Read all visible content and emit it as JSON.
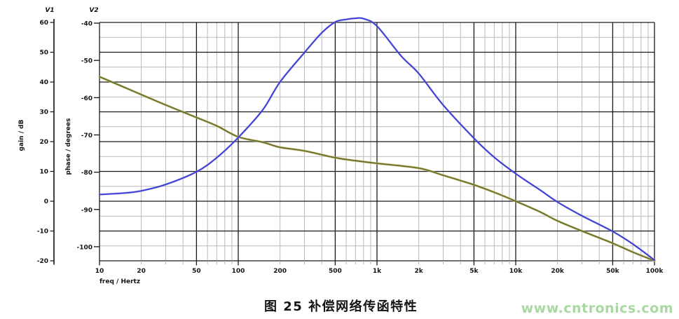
{
  "caption": "图 25 补偿网络传函特性",
  "watermark": "www.cntronics.com",
  "chart": {
    "v1_label": "V1",
    "v2_label": "V2",
    "y1_axis": {
      "title": "gain / dB",
      "unit": "dB",
      "max": 60,
      "min": -20,
      "ticks": [
        60,
        50,
        40,
        30,
        20,
        10,
        0,
        -10,
        -20
      ],
      "minor_step_dB": 5
    },
    "y2_axis": {
      "title": "phase / degrees",
      "unit": "degrees",
      "max": -40,
      "min": -104,
      "ticks": [
        -40,
        -50,
        -60,
        -70,
        -80,
        -90,
        -100
      ]
    },
    "x_axis": {
      "title": "freq / Hertz",
      "scale": "log",
      "min": 10,
      "max": 100000,
      "labeled_ticks": [
        {
          "f": 10,
          "label": "10"
        },
        {
          "f": 20,
          "label": "20"
        },
        {
          "f": 50,
          "label": "50"
        },
        {
          "f": 100,
          "label": "100"
        },
        {
          "f": 200,
          "label": "200"
        },
        {
          "f": 500,
          "label": "500"
        },
        {
          "f": 1000,
          "label": "1k"
        },
        {
          "f": 2000,
          "label": "2k"
        },
        {
          "f": 5000,
          "label": "5k"
        },
        {
          "f": 10000,
          "label": "10k"
        },
        {
          "f": 20000,
          "label": "20k"
        },
        {
          "f": 50000,
          "label": "50k"
        },
        {
          "f": 100000,
          "label": "100k"
        }
      ],
      "major_gridlines": [
        10,
        50,
        100,
        500,
        1000,
        5000,
        10000,
        50000,
        100000
      ],
      "minor_multipliers": [
        2,
        3,
        4,
        6,
        7,
        8,
        9
      ]
    }
  },
  "chart_data": {
    "type": "line",
    "x_scale": "log",
    "x_range": [
      10,
      100000
    ],
    "grid": "major-and-minor",
    "series": [
      {
        "name": "gain",
        "axis": "y1",
        "unit": "dB",
        "points": [
          [
            10,
            41.8
          ],
          [
            20,
            35.8
          ],
          [
            30,
            32.3
          ],
          [
            50,
            28.1
          ],
          [
            70,
            25.3
          ],
          [
            100,
            21.6
          ],
          [
            150,
            19.8
          ],
          [
            200,
            18.1
          ],
          [
            300,
            16.9
          ],
          [
            500,
            14.6
          ],
          [
            700,
            13.6
          ],
          [
            1000,
            12.7
          ],
          [
            2000,
            11.1
          ],
          [
            3000,
            8.7
          ],
          [
            5000,
            5.5
          ],
          [
            7000,
            3.0
          ],
          [
            10000,
            0.0
          ],
          [
            15000,
            -3.6
          ],
          [
            20000,
            -6.6
          ],
          [
            30000,
            -10.0
          ],
          [
            50000,
            -14.1
          ],
          [
            70000,
            -17.1
          ],
          [
            100000,
            -20.0
          ]
        ]
      },
      {
        "name": "phase",
        "axis": "y2",
        "unit": "degrees",
        "points": [
          [
            10,
            -86.0
          ],
          [
            15,
            -85.6
          ],
          [
            20,
            -85.0
          ],
          [
            30,
            -83.3
          ],
          [
            50,
            -79.9
          ],
          [
            70,
            -76.1
          ],
          [
            100,
            -70.7
          ],
          [
            150,
            -63.3
          ],
          [
            200,
            -55.8
          ],
          [
            300,
            -47.9
          ],
          [
            400,
            -42.6
          ],
          [
            500,
            -39.7
          ],
          [
            600,
            -39.0
          ],
          [
            700,
            -38.7
          ],
          [
            800,
            -38.8
          ],
          [
            1000,
            -40.8
          ],
          [
            1500,
            -48.9
          ],
          [
            2000,
            -53.5
          ],
          [
            3000,
            -62.0
          ],
          [
            5000,
            -70.9
          ],
          [
            7000,
            -76.0
          ],
          [
            10000,
            -80.4
          ],
          [
            15000,
            -84.8
          ],
          [
            20000,
            -88.0
          ],
          [
            30000,
            -91.7
          ],
          [
            50000,
            -95.9
          ],
          [
            70000,
            -99.3
          ],
          [
            100000,
            -103.6
          ]
        ]
      }
    ]
  },
  "colors": {
    "grid_major": "#1a1a1a",
    "grid_minor": "#b9b9b9",
    "axis_line": "#111111",
    "gain_curve": "#6b6b28",
    "gain_halo": "#c3c378",
    "phase_curve": "#3737d0",
    "phase_halo": "#9a9ae8",
    "caption_text": "#141414",
    "watermark_text": "#aad8a2"
  }
}
